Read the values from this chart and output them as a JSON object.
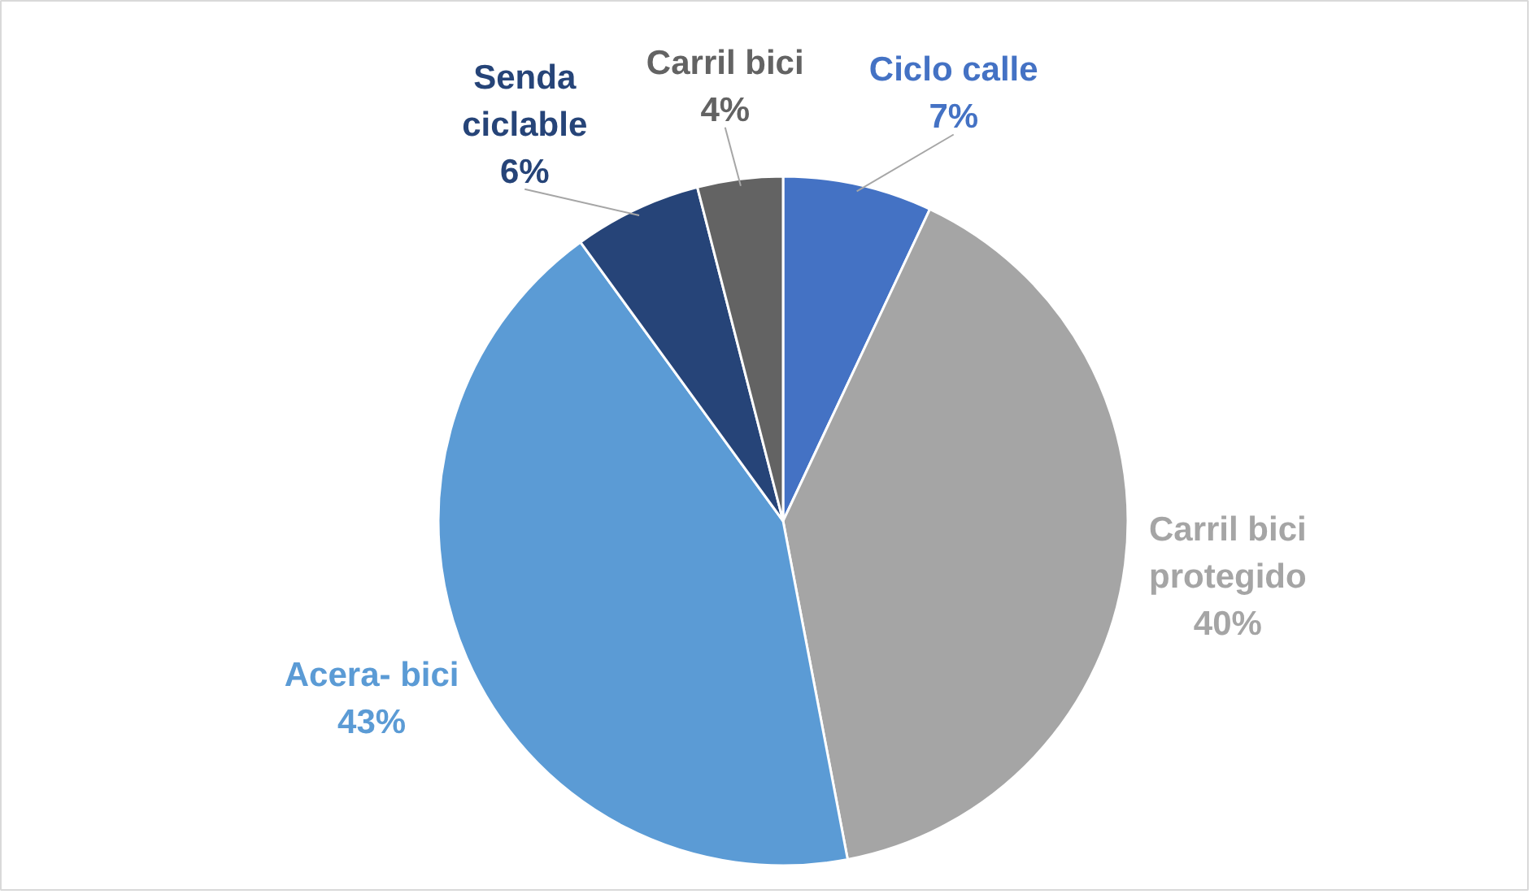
{
  "chart_data": {
    "type": "pie",
    "categories": [
      "Ciclo calle",
      "Carril bici protegido",
      "Acera- bici",
      "Senda ciclable",
      "Carril bici"
    ],
    "values": [
      7,
      40,
      43,
      6,
      4
    ],
    "value_labels": [
      "7%",
      "40%",
      "43%",
      "6%",
      "4%"
    ],
    "colors": [
      "#4472c4",
      "#a5a5a5",
      "#5b9bd5",
      "#264478",
      "#636363"
    ]
  }
}
